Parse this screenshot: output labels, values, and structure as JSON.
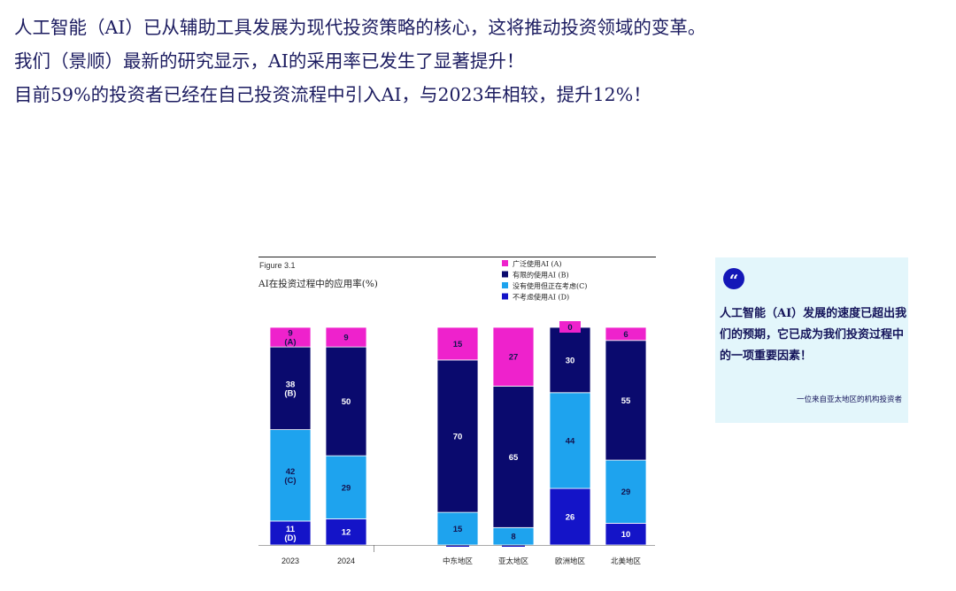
{
  "headlines": [
    "人工智能（AI）已从辅助工具发展为现代投资策略的核心，这将推动投资领域的变革。",
    "我们（景顺）最新的研究显示，AI的采用率已发生了显著提升！",
    "目前59%的投资者已经在自己投资流程中引入AI，与2023年相较，提升12%！"
  ],
  "figure_label": "Figure 3.1",
  "chart_data": {
    "type": "bar",
    "stacked": true,
    "title": "AI在投资过程中的应用率(%)",
    "categories": [
      "2023",
      "2024",
      "中东地区",
      "亚太地区",
      "欧洲地区",
      "北美地区"
    ],
    "series": [
      {
        "name": "不考虑使用AI (D)",
        "key": "D",
        "color": "#1414c8",
        "text_color": "#ffffff",
        "values": [
          11,
          12,
          0,
          0,
          26,
          10
        ],
        "value_labels": [
          "11\n(D)",
          "12",
          "0",
          "0",
          "26",
          "10"
        ]
      },
      {
        "name": "没有使用但正在考虑(C)",
        "key": "C",
        "color": "#1ea3ee",
        "text_color": "#141450",
        "values": [
          42,
          29,
          15,
          8,
          44,
          29
        ],
        "value_labels": [
          "42\n(C)",
          "29",
          "15",
          "8",
          "44",
          "29"
        ]
      },
      {
        "name": "有限的使用AI (B)",
        "key": "B",
        "color": "#0a0a6e",
        "text_color": "#ffffff",
        "values": [
          38,
          50,
          70,
          65,
          30,
          55
        ],
        "value_labels": [
          "38\n(B)",
          "50",
          "70",
          "65",
          "30",
          "55"
        ]
      },
      {
        "name": "广泛使用AI  (A)",
        "key": "A",
        "color": "#ee22cc",
        "text_color": "#141450",
        "values": [
          9,
          9,
          15,
          27,
          0,
          6
        ],
        "value_labels": [
          "9\n(A)",
          "9",
          "15",
          "27",
          "0",
          "6"
        ]
      }
    ],
    "legend_order": [
      "A",
      "B",
      "C",
      "D"
    ],
    "ylim": [
      0,
      100
    ],
    "grid": false,
    "legend_position": "top-right"
  },
  "quote": {
    "mark": "“",
    "text": "人工智能（AI）发展的速度已超出我们的预期，它已成为我们投资过程中的一项重要因素！",
    "source": "一位来自亚太地区的机构投资者"
  }
}
